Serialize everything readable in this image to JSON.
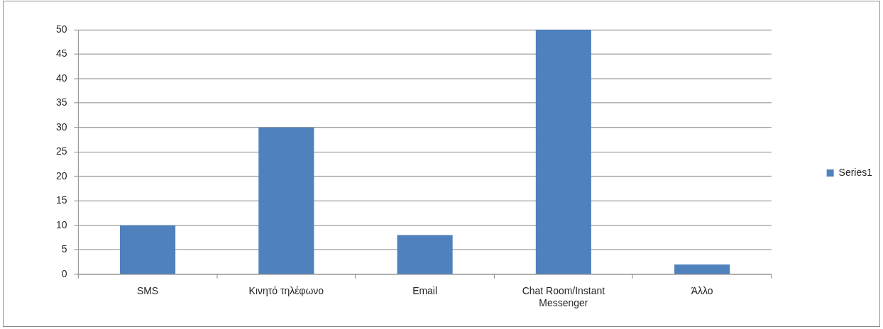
{
  "chart_data": {
    "type": "bar",
    "categories": [
      "SMS",
      "Κινητό τηλέφωνο",
      "Email",
      "Chat Room/Instant Messenger",
      "Άλλο"
    ],
    "series": [
      {
        "name": "Series1",
        "color": "#4f81bd",
        "values": [
          10,
          30,
          8,
          50,
          2
        ]
      }
    ],
    "ylim": [
      0,
      50
    ],
    "yticks": [
      0,
      5,
      10,
      15,
      20,
      25,
      30,
      35,
      40,
      45,
      50
    ],
    "grid": "y",
    "legend": "right"
  }
}
